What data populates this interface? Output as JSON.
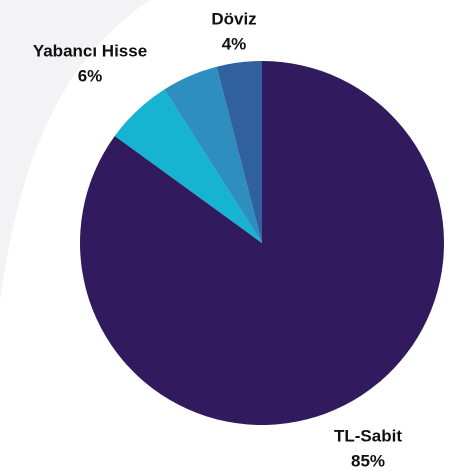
{
  "chart_data": {
    "type": "pie",
    "categories": [
      "TL-Sabit",
      "Yabancı Hisse",
      null,
      "Döviz"
    ],
    "values": [
      85,
      6,
      5,
      4
    ],
    "value_labels": [
      "85%",
      "6%",
      null,
      "4%"
    ],
    "colors": [
      "#321a5e",
      "#17b4d1",
      "#2e8ec0",
      "#30609e"
    ]
  }
}
